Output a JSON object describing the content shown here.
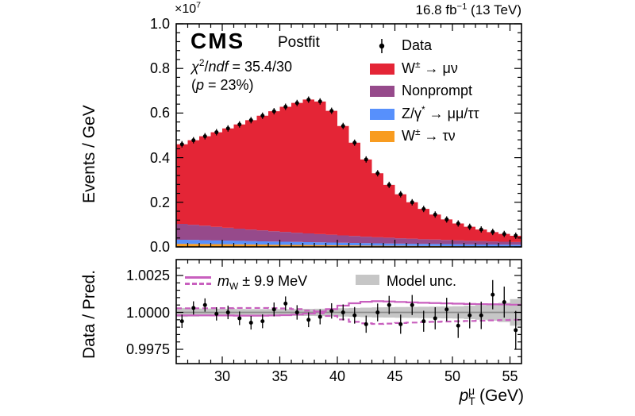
{
  "figure": {
    "scale_label": "×10^{7}",
    "lumi_label": "16.8 fb^{−1} (13 TeV)",
    "experiment": "CMS",
    "fit_label": "Postfit",
    "chi2_label": "*χ*^{2}/*ndf* = 35.4/30",
    "pvalue_label": "(*p* = 23%)"
  },
  "axes": {
    "x": {
      "title": "*p*_{T}^{μ} (GeV)",
      "min": 26,
      "max": 56,
      "bin_width_gev": 1,
      "n_bins": 30,
      "tick_values": [
        30,
        35,
        40,
        45,
        50,
        55
      ],
      "tick_labels": [
        "30",
        "35",
        "40",
        "45",
        "50",
        "55"
      ]
    },
    "y_top": {
      "title": "Events / GeV",
      "min": 0,
      "max": 1.0,
      "scale_factor": "10^7",
      "tick_values": [
        0.0,
        0.2,
        0.4,
        0.6,
        0.8,
        1.0
      ],
      "tick_labels": [
        "0.0",
        "0.2",
        "0.4",
        "0.6",
        "0.8",
        "1.0"
      ]
    },
    "y_ratio": {
      "title": "Data / Pred.",
      "tick_values": [
        0.9975,
        1.0,
        1.0025
      ],
      "tick_labels": [
        "0.9975",
        "1.0000",
        "1.0025"
      ]
    }
  },
  "legend": {
    "entries": [
      {
        "id": "data",
        "label": "Data",
        "type": "point",
        "color": "#000000"
      },
      {
        "id": "wmunu",
        "label": "W^{±} → μν",
        "type": "box",
        "color": "#e42536"
      },
      {
        "id": "nonprompt",
        "label": "Nonprompt",
        "type": "box",
        "color": "#964a8b"
      },
      {
        "id": "zgamma",
        "label": "Z/γ^{*} → μμ/ττ",
        "type": "box",
        "color": "#5790fc"
      },
      {
        "id": "wtaunu",
        "label": "W^{±} → τν",
        "type": "box",
        "color": "#f89c20"
      }
    ]
  },
  "ratio_legend": {
    "line_label": "*m*_{W} ± 9.9 MeV",
    "line_color": "#c85fbe",
    "band_label": "Model unc.",
    "band_color": "#c6c6c6",
    "center_line_color": "#8c8c8c"
  },
  "chart_data": {
    "type": "bar",
    "subtype": "stacked-histogram-with-ratio-panel",
    "x_bin_edges_start": 26,
    "x_bin_width": 1,
    "top_panel": {
      "ylabel": "Events / GeV",
      "ylim": [
        0,
        1.0
      ],
      "units": "×10^7 events/GeV",
      "series": [
        {
          "id": "wtaunu",
          "name": "W± → τν",
          "color": "#f89c20",
          "values": [
            0.014,
            0.0135,
            0.013,
            0.0125,
            0.012,
            0.0115,
            0.011,
            0.0105,
            0.01,
            0.0095,
            0.009,
            0.0085,
            0.008,
            0.0075,
            0.007,
            0.0065,
            0.006,
            0.0055,
            0.005,
            0.0047,
            0.0044,
            0.0041,
            0.0038,
            0.0035,
            0.0032,
            0.0029,
            0.0026,
            0.0024,
            0.0022,
            0.002
          ]
        },
        {
          "id": "zgamma",
          "name": "Z/γ* → μμ/ττ",
          "color": "#5790fc",
          "values": [
            0.018,
            0.0175,
            0.017,
            0.0165,
            0.016,
            0.0155,
            0.015,
            0.0146,
            0.0142,
            0.0138,
            0.0134,
            0.013,
            0.0126,
            0.0122,
            0.0118,
            0.0114,
            0.011,
            0.0106,
            0.0102,
            0.0099,
            0.0096,
            0.0093,
            0.009,
            0.0088,
            0.0086,
            0.0084,
            0.0082,
            0.0081,
            0.008,
            0.008
          ]
        },
        {
          "id": "nonprompt",
          "name": "Nonprompt",
          "color": "#964a8b",
          "values": [
            0.071,
            0.068,
            0.065,
            0.061,
            0.058,
            0.055,
            0.052,
            0.049,
            0.046,
            0.044,
            0.041,
            0.039,
            0.037,
            0.035,
            0.033,
            0.031,
            0.029,
            0.027,
            0.026,
            0.024,
            0.023,
            0.021,
            0.02,
            0.019,
            0.017,
            0.016,
            0.015,
            0.014,
            0.013,
            0.012
          ]
        },
        {
          "id": "wmunu",
          "name": "W± → μν",
          "color": "#e42536",
          "values": [
            0.357,
            0.379,
            0.401,
            0.424,
            0.445,
            0.467,
            0.49,
            0.514,
            0.538,
            0.561,
            0.582,
            0.6,
            0.594,
            0.555,
            0.49,
            0.418,
            0.346,
            0.287,
            0.237,
            0.197,
            0.163,
            0.136,
            0.112,
            0.092,
            0.076,
            0.063,
            0.052,
            0.042,
            0.035,
            0.028
          ]
        }
      ],
      "data": {
        "name": "Data",
        "values": [
          0.46,
          0.478,
          0.496,
          0.514,
          0.531,
          0.549,
          0.568,
          0.588,
          0.608,
          0.628,
          0.645,
          0.66,
          0.652,
          0.61,
          0.542,
          0.467,
          0.392,
          0.33,
          0.278,
          0.236,
          0.2,
          0.17,
          0.145,
          0.123,
          0.105,
          0.09,
          0.078,
          0.067,
          0.058,
          0.05
        ]
      }
    },
    "ratio_panel": {
      "ylabel": "Data / Pred.",
      "ylim": [
        0.9965,
        1.0036
      ],
      "points": [
        0.9994,
        1.0003,
        1.0005,
        0.9999,
        1.0,
        0.9996,
        0.9993,
        0.9994,
        1.0002,
        1.0006,
        1.0,
        0.9995,
        0.9997,
        1.0001,
        1.0,
        0.9998,
        0.9992,
        1.0,
        1.0005,
        0.9992,
        1.0005,
        0.9994,
        0.9996,
        1.0002,
        0.9991,
        0.9998,
        0.9998,
        1.0012,
        1.0007,
        0.9988
      ],
      "errors": [
        0.00045,
        0.00045,
        0.00045,
        0.00045,
        0.00046,
        0.00046,
        0.00046,
        0.00047,
        0.00047,
        0.00048,
        0.00049,
        0.0005,
        0.00051,
        0.00052,
        0.00054,
        0.00056,
        0.00058,
        0.0006,
        0.00062,
        0.00065,
        0.00068,
        0.00071,
        0.00075,
        0.00079,
        0.00083,
        0.00088,
        0.00093,
        0.00099,
        0.00105,
        0.0013
      ],
      "line_solid": [
        0.9998,
        0.9998,
        0.9998,
        0.99979,
        0.99979,
        0.99978,
        0.99978,
        0.99978,
        0.99979,
        0.99981,
        0.99985,
        0.99992,
        1.00006,
        1.00022,
        1.00046,
        1.00062,
        1.00072,
        1.00076,
        1.00074,
        1.00071,
        1.00068,
        1.00065,
        1.00063,
        1.00061,
        1.00059,
        1.00057,
        1.00056,
        1.00055,
        1.00054,
        1.00052
      ],
      "line_dashed": [
        1.00028,
        1.00028,
        1.00028,
        1.00029,
        1.00029,
        1.0003,
        1.0003,
        1.0003,
        1.00029,
        1.00027,
        1.00022,
        1.00012,
        0.99994,
        0.99976,
        0.99952,
        0.99936,
        0.99926,
        0.99922,
        0.99924,
        0.99928,
        0.99931,
        0.99934,
        0.99936,
        0.99938,
        0.9994,
        0.99942,
        0.99944,
        0.99946,
        0.99948,
        0.9995
      ],
      "band_halfwidth": [
        0.0003,
        0.00028,
        0.00026,
        0.00025,
        0.00024,
        0.00023,
        0.00022,
        0.00022,
        0.00022,
        0.00022,
        0.00023,
        0.00024,
        0.00025,
        0.00026,
        0.00028,
        0.0003,
        0.00032,
        0.00034,
        0.00035,
        0.00036,
        0.00037,
        0.00038,
        0.00039,
        0.0004,
        0.00042,
        0.00045,
        0.0005,
        0.00056,
        0.00065,
        0.0009
      ]
    }
  }
}
